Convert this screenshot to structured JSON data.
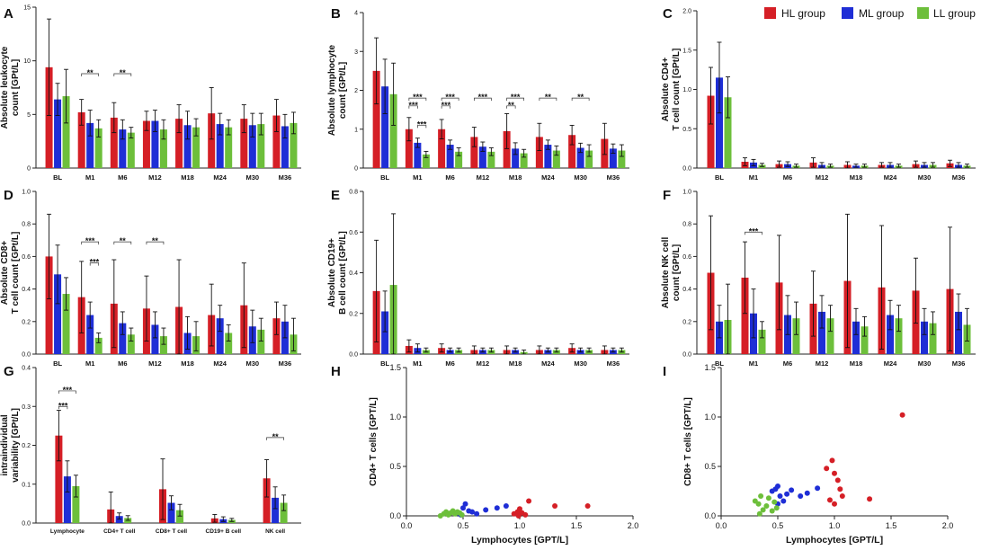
{
  "colors": {
    "hl": "#d51f26",
    "ml": "#1f2ed6",
    "ll": "#6dbf3b",
    "axis": "#222222"
  },
  "legend": {
    "items": [
      {
        "label": "HL group",
        "color": "#d51f26"
      },
      {
        "label": "ML group",
        "color": "#1f2ed6"
      },
      {
        "label": "LL group",
        "color": "#6dbf3b"
      }
    ]
  },
  "chart_data": [
    {
      "id": "A",
      "letter": "A",
      "type": "bar",
      "ylabel": [
        "Absolute leukocyte",
        "count [GPt/L]"
      ],
      "ylim": [
        0,
        15
      ],
      "yticks": [
        0,
        5,
        10,
        15
      ],
      "categories": [
        "BL",
        "M1",
        "M6",
        "M12",
        "M18",
        "M24",
        "M30",
        "M36"
      ],
      "series": [
        {
          "name": "HL group",
          "values": [
            9.4,
            5.2,
            4.7,
            4.4,
            4.6,
            5.1,
            4.6,
            4.9
          ],
          "err": [
            4.5,
            1.2,
            1.4,
            0.9,
            1.3,
            2.4,
            1.3,
            1.5
          ]
        },
        {
          "name": "ML group",
          "values": [
            6.4,
            4.2,
            3.6,
            4.4,
            4.0,
            4.1,
            4.0,
            3.9
          ],
          "err": [
            1.5,
            1.2,
            0.9,
            1.0,
            1.3,
            1.0,
            1.1,
            1.1
          ]
        },
        {
          "name": "LL group",
          "values": [
            6.7,
            3.7,
            3.3,
            3.6,
            3.8,
            3.8,
            4.1,
            4.2
          ],
          "err": [
            2.5,
            0.8,
            0.5,
            0.9,
            0.8,
            0.7,
            1.0,
            1.0
          ]
        }
      ],
      "sig": [
        {
          "group": 1,
          "a": 0,
          "b": 2,
          "level": 8.8,
          "label": "**"
        },
        {
          "group": 2,
          "a": 0,
          "b": 2,
          "level": 8.8,
          "label": "**"
        }
      ]
    },
    {
      "id": "B",
      "letter": "B",
      "type": "bar",
      "ylabel": [
        "Absolute lymphocyte",
        "count [GPt/L]"
      ],
      "ylim": [
        0,
        4
      ],
      "yticks": [
        0,
        1,
        2,
        3,
        4
      ],
      "categories": [
        "BL",
        "M1",
        "M6",
        "M12",
        "M18",
        "M24",
        "M30",
        "M36"
      ],
      "series": [
        {
          "name": "HL group",
          "values": [
            2.5,
            1.0,
            1.0,
            0.8,
            0.95,
            0.8,
            0.85,
            0.75
          ],
          "err": [
            0.85,
            0.3,
            0.25,
            0.25,
            0.45,
            0.35,
            0.25,
            0.4
          ]
        },
        {
          "name": "ML group",
          "values": [
            2.1,
            0.65,
            0.6,
            0.55,
            0.5,
            0.6,
            0.52,
            0.5
          ],
          "err": [
            0.7,
            0.12,
            0.12,
            0.12,
            0.15,
            0.12,
            0.12,
            0.12
          ]
        },
        {
          "name": "LL group",
          "values": [
            1.9,
            0.35,
            0.42,
            0.42,
            0.38,
            0.45,
            0.45,
            0.45
          ],
          "err": [
            0.8,
            0.08,
            0.1,
            0.1,
            0.1,
            0.12,
            0.15,
            0.15
          ]
        }
      ],
      "sig": [
        {
          "group": 1,
          "a": 0,
          "b": 2,
          "level": 1.8,
          "label": "***"
        },
        {
          "group": 1,
          "a": 0,
          "b": 1,
          "level": 1.6,
          "label": "***"
        },
        {
          "group": 1,
          "a": 1,
          "b": 2,
          "level": 1.1,
          "label": "***"
        },
        {
          "group": 2,
          "a": 0,
          "b": 2,
          "level": 1.8,
          "label": "***"
        },
        {
          "group": 2,
          "a": 0,
          "b": 1,
          "level": 1.6,
          "label": "***"
        },
        {
          "group": 3,
          "a": 0,
          "b": 2,
          "level": 1.8,
          "label": "***"
        },
        {
          "group": 4,
          "a": 0,
          "b": 2,
          "level": 1.8,
          "label": "***"
        },
        {
          "group": 4,
          "a": 0,
          "b": 1,
          "level": 1.6,
          "label": "**"
        },
        {
          "group": 5,
          "a": 0,
          "b": 2,
          "level": 1.8,
          "label": "**"
        },
        {
          "group": 6,
          "a": 0,
          "b": 2,
          "level": 1.8,
          "label": "**"
        }
      ]
    },
    {
      "id": "C",
      "letter": "C",
      "type": "bar",
      "ylabel": [
        "Absolute CD4+",
        "T cell count [GPt/L]"
      ],
      "ylim": [
        0,
        2.0
      ],
      "yticks": [
        0.0,
        0.5,
        1.0,
        1.5,
        2.0
      ],
      "decimals": 1,
      "categories": [
        "BL",
        "M1",
        "M6",
        "M12",
        "M18",
        "M24",
        "M30",
        "M36"
      ],
      "series": [
        {
          "name": "HL group",
          "values": [
            0.92,
            0.08,
            0.05,
            0.07,
            0.04,
            0.04,
            0.05,
            0.06
          ],
          "err": [
            0.36,
            0.05,
            0.04,
            0.06,
            0.04,
            0.03,
            0.04,
            0.04
          ]
        },
        {
          "name": "ML group",
          "values": [
            1.15,
            0.07,
            0.05,
            0.04,
            0.03,
            0.04,
            0.04,
            0.04
          ],
          "err": [
            0.45,
            0.04,
            0.03,
            0.03,
            0.02,
            0.03,
            0.03,
            0.03
          ]
        },
        {
          "name": "LL group",
          "values": [
            0.9,
            0.04,
            0.03,
            0.03,
            0.03,
            0.03,
            0.04,
            0.03
          ],
          "err": [
            0.26,
            0.02,
            0.02,
            0.02,
            0.02,
            0.02,
            0.03,
            0.02
          ]
        }
      ],
      "sig": []
    },
    {
      "id": "D",
      "letter": "D",
      "type": "bar",
      "ylabel": [
        "Absolute CD8+",
        "T cell count [GPt/L]"
      ],
      "ylim": [
        0,
        1.0
      ],
      "yticks": [
        0.0,
        0.2,
        0.4,
        0.6,
        0.8,
        1.0
      ],
      "decimals": 1,
      "categories": [
        "BL",
        "M1",
        "M6",
        "M12",
        "M18",
        "M24",
        "M30",
        "M36"
      ],
      "series": [
        {
          "name": "HL group",
          "values": [
            0.6,
            0.35,
            0.31,
            0.28,
            0.29,
            0.24,
            0.3,
            0.22
          ],
          "err": [
            0.26,
            0.22,
            0.27,
            0.2,
            0.29,
            0.19,
            0.26,
            0.1
          ]
        },
        {
          "name": "ML group",
          "values": [
            0.49,
            0.24,
            0.19,
            0.18,
            0.13,
            0.22,
            0.17,
            0.2
          ],
          "err": [
            0.18,
            0.08,
            0.07,
            0.08,
            0.1,
            0.08,
            0.1,
            0.1
          ]
        },
        {
          "name": "LL group",
          "values": [
            0.37,
            0.1,
            0.12,
            0.11,
            0.11,
            0.13,
            0.15,
            0.12
          ],
          "err": [
            0.1,
            0.03,
            0.04,
            0.05,
            0.09,
            0.05,
            0.07,
            0.1
          ]
        }
      ],
      "sig": [
        {
          "group": 1,
          "a": 0,
          "b": 2,
          "level": 0.69,
          "label": "***"
        },
        {
          "group": 1,
          "a": 1,
          "b": 2,
          "level": 0.56,
          "label": "***"
        },
        {
          "group": 2,
          "a": 0,
          "b": 2,
          "level": 0.69,
          "label": "**"
        },
        {
          "group": 3,
          "a": 0,
          "b": 2,
          "level": 0.69,
          "label": "**"
        }
      ]
    },
    {
      "id": "E",
      "letter": "E",
      "type": "bar",
      "ylabel": [
        "Absolute CD19+",
        "B cell count [GPt/L]"
      ],
      "ylim": [
        0,
        0.8
      ],
      "yticks": [
        0.0,
        0.2,
        0.4,
        0.6,
        0.8
      ],
      "decimals": 1,
      "categories": [
        "BL",
        "M1",
        "M6",
        "M12",
        "M18",
        "M24",
        "M30",
        "M36"
      ],
      "series": [
        {
          "name": "HL group",
          "values": [
            0.31,
            0.04,
            0.03,
            0.02,
            0.02,
            0.02,
            0.03,
            0.02
          ],
          "err": [
            0.25,
            0.03,
            0.02,
            0.02,
            0.02,
            0.02,
            0.02,
            0.02
          ]
        },
        {
          "name": "ML group",
          "values": [
            0.21,
            0.03,
            0.02,
            0.02,
            0.02,
            0.02,
            0.02,
            0.02
          ],
          "err": [
            0.1,
            0.02,
            0.01,
            0.01,
            0.01,
            0.01,
            0.01,
            0.01
          ]
        },
        {
          "name": "LL group",
          "values": [
            0.34,
            0.02,
            0.02,
            0.02,
            0.01,
            0.02,
            0.02,
            0.02
          ],
          "err": [
            0.35,
            0.01,
            0.01,
            0.01,
            0.01,
            0.01,
            0.01,
            0.01
          ]
        }
      ],
      "sig": []
    },
    {
      "id": "F",
      "letter": "F",
      "type": "bar",
      "ylabel": [
        "Absolute NK cell",
        "count [GPt/L]"
      ],
      "ylim": [
        0,
        1.0
      ],
      "yticks": [
        0.0,
        0.2,
        0.4,
        0.6,
        0.8,
        1.0
      ],
      "decimals": 1,
      "categories": [
        "BL",
        "M1",
        "M6",
        "M12",
        "M18",
        "M24",
        "M30",
        "M36"
      ],
      "series": [
        {
          "name": "HL group",
          "values": [
            0.5,
            0.47,
            0.44,
            0.31,
            0.45,
            0.41,
            0.39,
            0.4
          ],
          "err": [
            0.35,
            0.22,
            0.29,
            0.2,
            0.41,
            0.38,
            0.2,
            0.38
          ]
        },
        {
          "name": "ML group",
          "values": [
            0.2,
            0.25,
            0.24,
            0.26,
            0.2,
            0.24,
            0.2,
            0.26
          ],
          "err": [
            0.1,
            0.15,
            0.12,
            0.1,
            0.08,
            0.09,
            0.08,
            0.11
          ]
        },
        {
          "name": "LL group",
          "values": [
            0.21,
            0.15,
            0.22,
            0.22,
            0.17,
            0.22,
            0.19,
            0.18
          ],
          "err": [
            0.22,
            0.05,
            0.1,
            0.08,
            0.06,
            0.08,
            0.07,
            0.1
          ]
        }
      ],
      "sig": [
        {
          "group": 1,
          "a": 0,
          "b": 2,
          "level": 0.75,
          "label": "***"
        }
      ]
    },
    {
      "id": "G",
      "letter": "G",
      "type": "bar",
      "ylabel": [
        "intraindividual",
        "variability [GPt/L]"
      ],
      "ylim": [
        0,
        0.4
      ],
      "yticks": [
        0.0,
        0.1,
        0.2,
        0.3,
        0.4
      ],
      "decimals": 1,
      "categories": [
        "Lymphocyte",
        "CD4+ T cell",
        "CD8+ T cell",
        "CD19+ B cell",
        "NK cell"
      ],
      "series": [
        {
          "name": "HL group",
          "values": [
            0.225,
            0.035,
            0.087,
            0.012,
            0.115
          ],
          "err": [
            0.065,
            0.045,
            0.078,
            0.01,
            0.048
          ]
        },
        {
          "name": "ML group",
          "values": [
            0.12,
            0.018,
            0.052,
            0.01,
            0.065
          ],
          "err": [
            0.04,
            0.008,
            0.018,
            0.006,
            0.028
          ]
        },
        {
          "name": "LL group",
          "values": [
            0.095,
            0.013,
            0.033,
            0.008,
            0.052
          ],
          "err": [
            0.028,
            0.006,
            0.015,
            0.004,
            0.02
          ]
        }
      ],
      "sig": [
        {
          "group": 0,
          "a": 0,
          "b": 2,
          "level": 0.34,
          "label": "***"
        },
        {
          "group": 0,
          "a": 0,
          "b": 1,
          "level": 0.3,
          "label": "***"
        },
        {
          "group": 4,
          "a": 0,
          "b": 2,
          "level": 0.22,
          "label": "**"
        }
      ]
    },
    {
      "id": "H",
      "letter": "H",
      "type": "scatter",
      "xlabel": "Lymphocytes  [GPT/L]",
      "ylabel": "CD4+ T cells [GPT/L]",
      "xlim": [
        0,
        2.0
      ],
      "ylim": [
        0,
        1.5
      ],
      "xticks": [
        0.0,
        0.5,
        1.0,
        1.5,
        2.0
      ],
      "yticks": [
        0.0,
        0.5,
        1.0,
        1.5
      ],
      "decimals": 1,
      "series": [
        {
          "name": "HL group",
          "x": [
            0.95,
            0.98,
            1.0,
            1.02,
            1.05,
            1.08,
            0.99,
            1.31,
            1.6
          ],
          "y": [
            0.02,
            0.04,
            0.07,
            0.03,
            0.01,
            0.15,
            0.0,
            0.1,
            0.1
          ]
        },
        {
          "name": "ML group",
          "x": [
            0.45,
            0.5,
            0.52,
            0.55,
            0.58,
            0.62,
            0.7,
            0.8,
            0.88,
            0.48
          ],
          "y": [
            0.03,
            0.08,
            0.12,
            0.05,
            0.04,
            0.02,
            0.06,
            0.08,
            0.1,
            0.01
          ]
        },
        {
          "name": "LL group",
          "x": [
            0.3,
            0.33,
            0.35,
            0.37,
            0.39,
            0.41,
            0.43,
            0.45,
            0.47,
            0.49
          ],
          "y": [
            0.0,
            0.02,
            0.04,
            0.01,
            0.03,
            0.05,
            0.02,
            0.04,
            0.03,
            0.01
          ]
        }
      ]
    },
    {
      "id": "I",
      "letter": "I",
      "type": "scatter",
      "xlabel": "Lymphocytes  [GPT/L]",
      "ylabel": "CD8+ T cells [GPT/L]",
      "xlim": [
        0,
        2.0
      ],
      "ylim": [
        0,
        1.5
      ],
      "xticks": [
        0.0,
        0.5,
        1.0,
        1.5,
        2.0
      ],
      "yticks": [
        0.0,
        0.5,
        1.0,
        1.5
      ],
      "decimals": 1,
      "series": [
        {
          "name": "HL group",
          "x": [
            0.93,
            0.98,
            1.0,
            1.03,
            1.05,
            1.07,
            0.96,
            1.0,
            1.31,
            1.6
          ],
          "y": [
            0.48,
            0.56,
            0.43,
            0.36,
            0.27,
            0.2,
            0.16,
            0.12,
            0.17,
            1.02
          ]
        },
        {
          "name": "ML group",
          "x": [
            0.45,
            0.48,
            0.5,
            0.52,
            0.55,
            0.58,
            0.62,
            0.7,
            0.76,
            0.85,
            0.5
          ],
          "y": [
            0.25,
            0.27,
            0.3,
            0.2,
            0.15,
            0.22,
            0.26,
            0.2,
            0.23,
            0.28,
            0.12
          ]
        },
        {
          "name": "LL group",
          "x": [
            0.3,
            0.33,
            0.35,
            0.37,
            0.4,
            0.42,
            0.45,
            0.47,
            0.49,
            0.34
          ],
          "y": [
            0.15,
            0.12,
            0.2,
            0.06,
            0.1,
            0.18,
            0.05,
            0.14,
            0.08,
            0.02
          ]
        }
      ]
    }
  ]
}
